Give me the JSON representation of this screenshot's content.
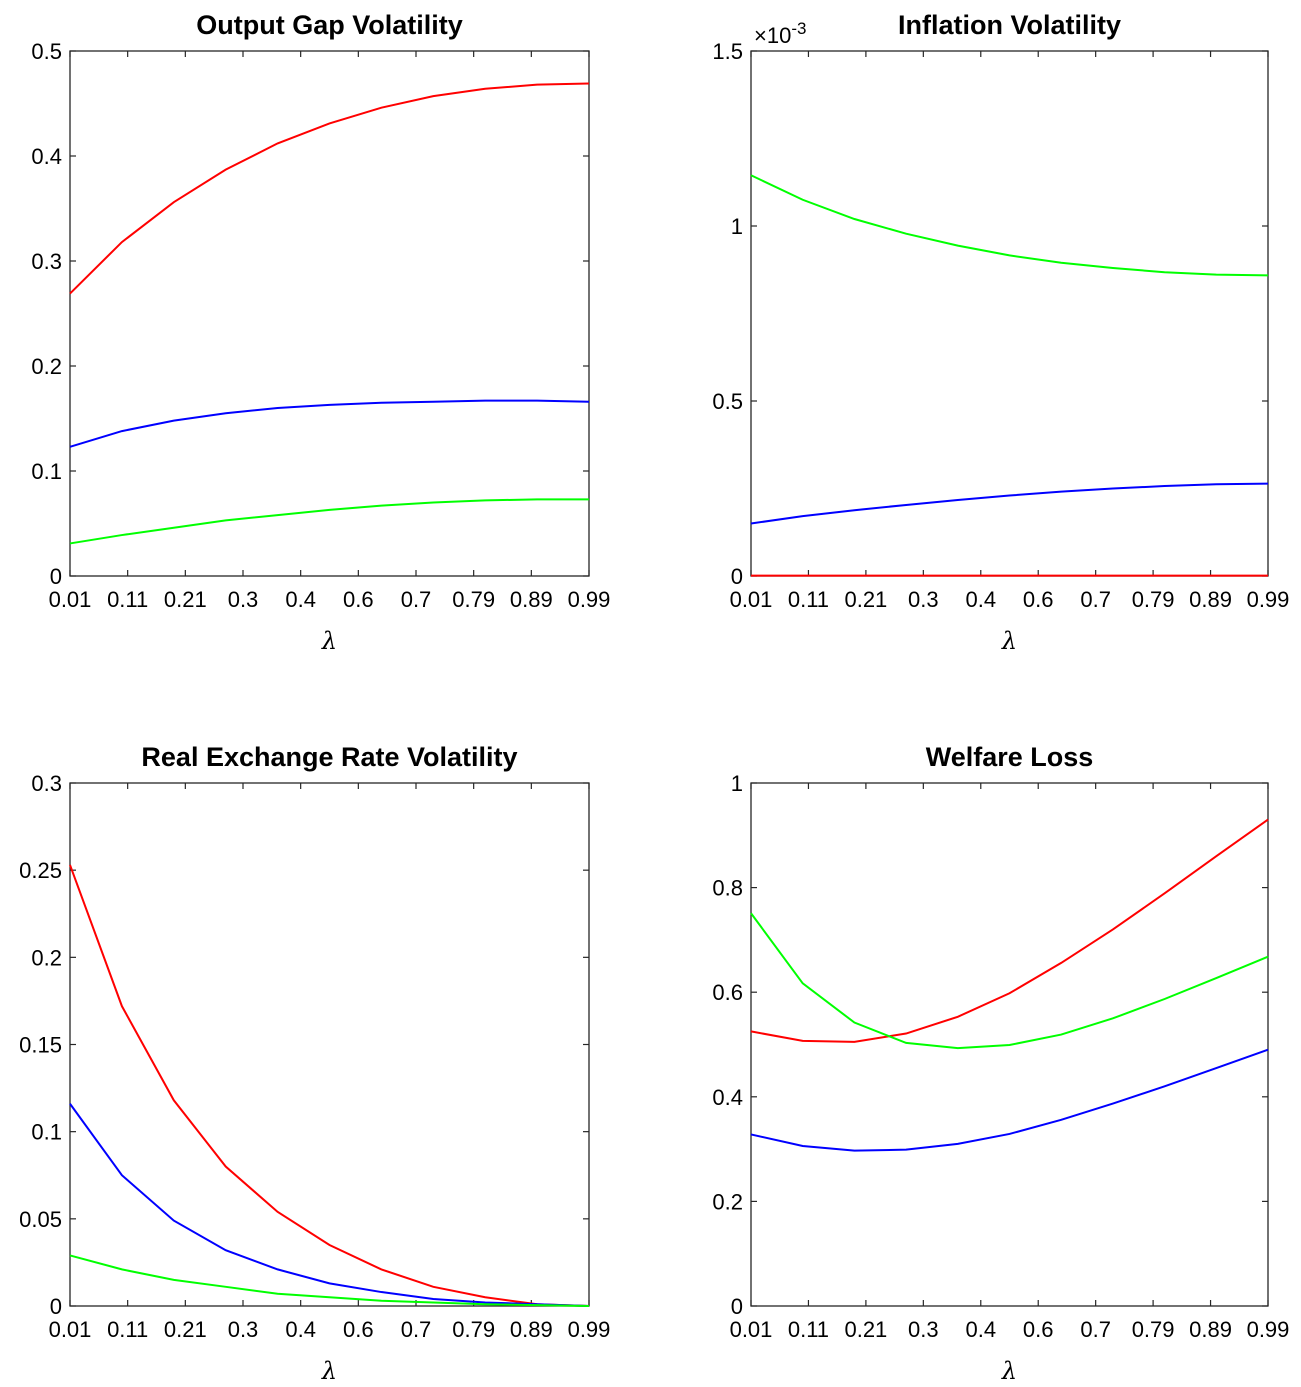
{
  "chart_data": [
    {
      "type": "line",
      "title": "Output Gap Volatility",
      "xlabel": "λ",
      "x_ticks": [
        "0.01",
        "0.11",
        "0.21",
        "0.3",
        "0.4",
        "0.6",
        "0.7",
        "0.79",
        "0.89",
        "0.99"
      ],
      "y_ticks": [
        "0",
        "0.1",
        "0.2",
        "0.3",
        "0.4",
        "0.5"
      ],
      "ylim": [
        0,
        0.5
      ],
      "series": [
        {
          "color": "#ff0000",
          "values": [
            0.269,
            0.318,
            0.356,
            0.387,
            0.412,
            0.431,
            0.446,
            0.457,
            0.464,
            0.468,
            0.469
          ]
        },
        {
          "color": "#0000ff",
          "values": [
            0.123,
            0.138,
            0.148,
            0.155,
            0.16,
            0.163,
            0.165,
            0.166,
            0.167,
            0.167,
            0.166
          ]
        },
        {
          "color": "#00ff00",
          "values": [
            0.031,
            0.039,
            0.046,
            0.053,
            0.058,
            0.063,
            0.067,
            0.07,
            0.072,
            0.073,
            0.073
          ]
        }
      ]
    },
    {
      "type": "line",
      "title": "Inflation Volatility",
      "xlabel": "λ",
      "x_ticks": [
        "0.01",
        "0.11",
        "0.21",
        "0.3",
        "0.4",
        "0.6",
        "0.7",
        "0.79",
        "0.89",
        "0.99"
      ],
      "y_ticks": [
        "0",
        "0.5",
        "1",
        "1.5"
      ],
      "y_exponent": "×10",
      "y_exponent_power": "-3",
      "ylim": [
        0,
        1.5
      ],
      "series": [
        {
          "color": "#00ff00",
          "values": [
            1.145,
            1.075,
            1.02,
            0.978,
            0.944,
            0.916,
            0.895,
            0.88,
            0.868,
            0.861,
            0.859
          ]
        },
        {
          "color": "#0000ff",
          "values": [
            0.15,
            0.171,
            0.188,
            0.203,
            0.217,
            0.23,
            0.241,
            0.25,
            0.257,
            0.262,
            0.264
          ]
        },
        {
          "color": "#ff0000",
          "values": [
            0.001,
            0.001,
            0.001,
            0.001,
            0.001,
            0.001,
            0.001,
            0.001,
            0.001,
            0.001,
            0.001
          ]
        }
      ]
    },
    {
      "type": "line",
      "title": "Real Exchange Rate Volatility",
      "xlabel": "λ",
      "x_ticks": [
        "0.01",
        "0.11",
        "0.21",
        "0.3",
        "0.4",
        "0.6",
        "0.7",
        "0.79",
        "0.89",
        "0.99"
      ],
      "y_ticks": [
        "0",
        "0.05",
        "0.1",
        "0.15",
        "0.2",
        "0.25",
        "0.3"
      ],
      "ylim": [
        0,
        0.3
      ],
      "series": [
        {
          "color": "#ff0000",
          "values": [
            0.253,
            0.172,
            0.118,
            0.08,
            0.054,
            0.035,
            0.021,
            0.011,
            0.005,
            0.001,
            0.0
          ]
        },
        {
          "color": "#0000ff",
          "values": [
            0.116,
            0.075,
            0.049,
            0.032,
            0.021,
            0.013,
            0.008,
            0.004,
            0.002,
            0.001,
            0.0
          ]
        },
        {
          "color": "#00ff00",
          "values": [
            0.029,
            0.021,
            0.015,
            0.011,
            0.007,
            0.005,
            0.003,
            0.002,
            0.001,
            0.0005,
            0.0
          ]
        }
      ]
    },
    {
      "type": "line",
      "title": "Welfare Loss",
      "xlabel": "λ",
      "x_ticks": [
        "0.01",
        "0.11",
        "0.21",
        "0.3",
        "0.4",
        "0.6",
        "0.7",
        "0.79",
        "0.89",
        "0.99"
      ],
      "y_ticks": [
        "0",
        "0.2",
        "0.4",
        "0.6",
        "0.8",
        "1"
      ],
      "ylim": [
        0,
        1
      ],
      "series": [
        {
          "color": "#ff0000",
          "values": [
            0.525,
            0.507,
            0.505,
            0.521,
            0.553,
            0.598,
            0.656,
            0.72,
            0.789,
            0.86,
            0.93
          ]
        },
        {
          "color": "#00ff00",
          "values": [
            0.751,
            0.617,
            0.542,
            0.503,
            0.493,
            0.499,
            0.519,
            0.55,
            0.587,
            0.627,
            0.668
          ]
        },
        {
          "color": "#0000ff",
          "values": [
            0.328,
            0.306,
            0.297,
            0.299,
            0.31,
            0.329,
            0.356,
            0.387,
            0.42,
            0.455,
            0.49
          ]
        }
      ]
    }
  ]
}
